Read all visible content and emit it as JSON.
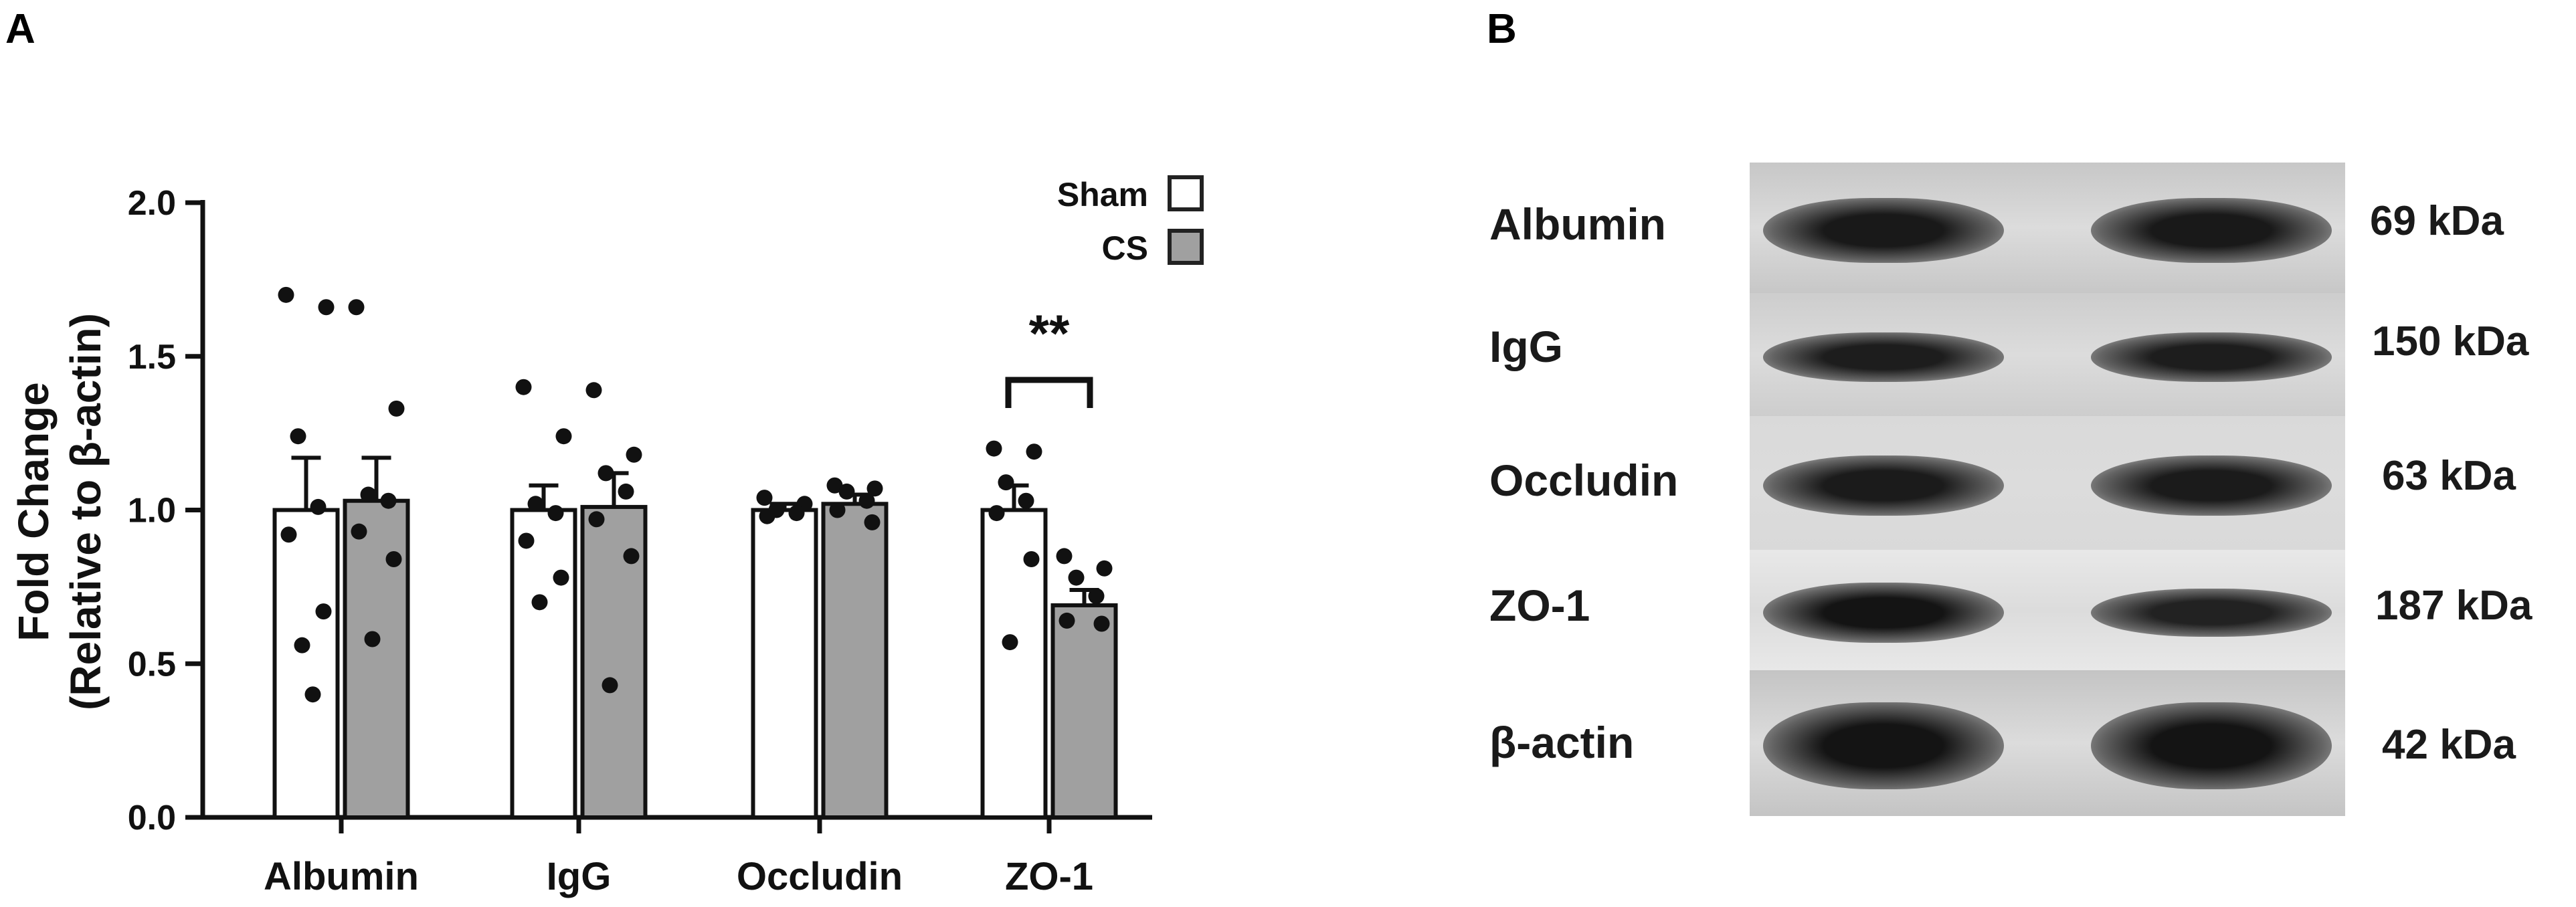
{
  "panels": {
    "a": "A",
    "b": "B"
  },
  "chart_data": {
    "type": "bar",
    "title": "",
    "ylabel_line1": "Fold Change",
    "ylabel_line2": "(Relative to β-actin)",
    "xlabel": "",
    "ylim": [
      0,
      2.0
    ],
    "yticks": [
      "0.0",
      "0.5",
      "1.0",
      "1.5",
      "2.0"
    ],
    "categories": [
      "Albumin",
      "IgG",
      "Occludin",
      "ZO-1"
    ],
    "series": [
      {
        "name": "Sham",
        "color": "#ffffff",
        "values": [
          1.0,
          1.0,
          1.0,
          1.0
        ],
        "sem": [
          0.17,
          0.08,
          0.02,
          0.08
        ],
        "points": [
          [
            1.7,
            1.66,
            1.24,
            1.01,
            0.92,
            0.67,
            0.56,
            0.4
          ],
          [
            1.4,
            1.24,
            1.02,
            0.99,
            0.9,
            0.78,
            0.7
          ],
          [
            1.04,
            1.02,
            1.0,
            0.99,
            0.98
          ],
          [
            1.2,
            1.19,
            1.09,
            1.03,
            0.99,
            0.84,
            0.57
          ]
        ]
      },
      {
        "name": "CS",
        "color": "#a0a0a0",
        "values": [
          1.03,
          1.01,
          1.02,
          0.69
        ],
        "sem": [
          0.14,
          0.11,
          0.03,
          0.05
        ],
        "points": [
          [
            1.66,
            1.33,
            1.05,
            1.03,
            0.93,
            0.84,
            0.58
          ],
          [
            1.39,
            1.18,
            1.12,
            1.06,
            0.97,
            0.85,
            0.43
          ],
          [
            1.08,
            1.07,
            1.06,
            1.03,
            1.0,
            0.96
          ],
          [
            0.85,
            0.81,
            0.78,
            0.72,
            0.64,
            0.63
          ]
        ]
      }
    ],
    "legend": {
      "position": "top-right",
      "entries": [
        "Sham",
        "CS"
      ]
    },
    "annotations": [
      {
        "text": "**",
        "category": "ZO-1"
      }
    ]
  },
  "blot": {
    "rows": [
      {
        "label": "Albumin",
        "kda": "69 kDa",
        "band_intensity": [
          0.95,
          0.95
        ],
        "band_thickness": [
          0.5,
          0.5
        ],
        "bg": "#c7c7c7"
      },
      {
        "label": "IgG",
        "kda": "150 kDa",
        "band_intensity": [
          0.9,
          0.9
        ],
        "band_thickness": [
          0.4,
          0.4
        ],
        "bg": "#cdcdcd"
      },
      {
        "label": "Occludin",
        "kda": "63 kDa",
        "band_intensity": [
          0.92,
          0.92
        ],
        "band_thickness": [
          0.45,
          0.45
        ],
        "bg": "#d9d9d9"
      },
      {
        "label": "ZO-1",
        "kda": "187 kDa",
        "band_intensity": [
          1.0,
          0.85
        ],
        "band_thickness": [
          0.5,
          0.4
        ],
        "bg": "#e8e8e8"
      },
      {
        "label": "β-actin",
        "kda": "42 kDa",
        "band_intensity": [
          1.0,
          1.0
        ],
        "band_thickness": [
          0.6,
          0.6
        ],
        "bg": "#c4c4c4"
      }
    ]
  }
}
